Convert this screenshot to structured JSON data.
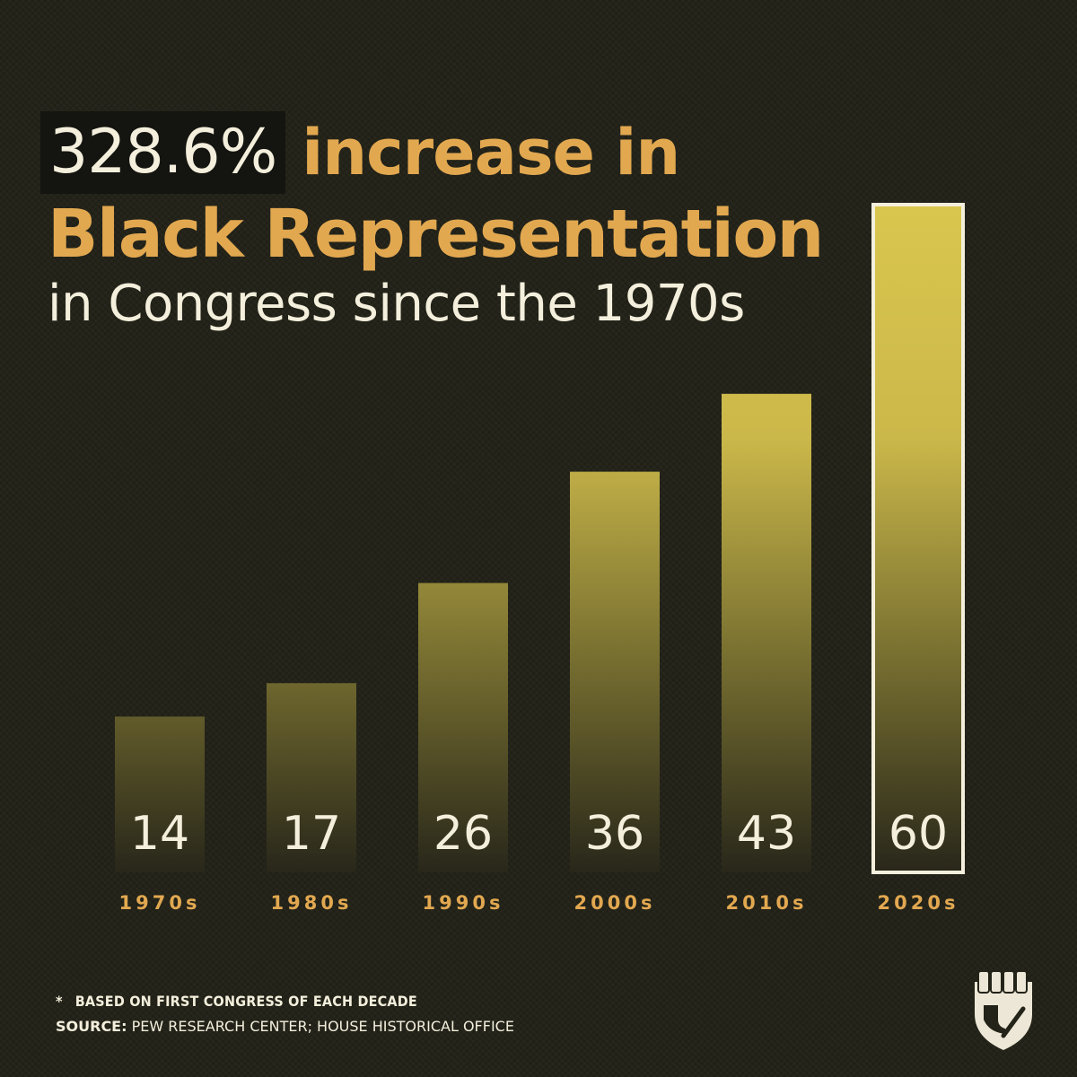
{
  "headline": {
    "percent": "328.6%",
    "title_part1": "increase in",
    "title_part2": "Black Representation",
    "subtitle": "in Congress since the 1970s"
  },
  "chart_data": {
    "type": "bar",
    "categories": [
      "1970s",
      "1980s",
      "1990s",
      "2000s",
      "2010s",
      "2020s"
    ],
    "values": [
      14,
      17,
      26,
      36,
      43,
      60
    ],
    "title": "328.6% increase in Black Representation in Congress since the 1970s",
    "xlabel": "",
    "ylabel": "",
    "ylim": [
      0,
      60
    ],
    "grid": false,
    "highlight_index": 5
  },
  "colors": {
    "accent": "#e2a850",
    "text_light": "#f4efdc",
    "bar_top": "#d9c64e",
    "bar_bottom": "#28271a",
    "background": "#232319"
  },
  "footnote": {
    "marker": "*",
    "text": "BASED ON FIRST CONGRESS OF EACH DECADE"
  },
  "source": {
    "label": "SOURCE:",
    "text": "PEW RESEARCH CENTER; HOUSE HISTORICAL OFFICE"
  },
  "logo": {
    "icon": "raised-fist-shield-icon"
  }
}
